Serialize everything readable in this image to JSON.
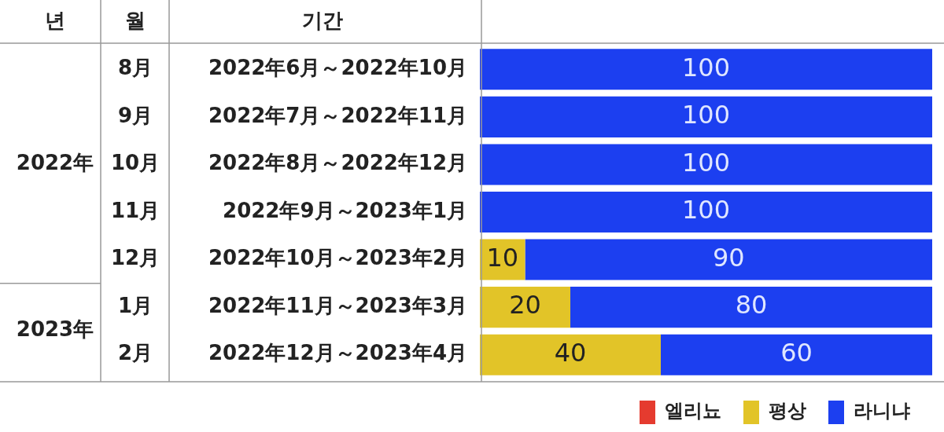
{
  "chart_data": {
    "type": "bar",
    "orientation": "horizontal",
    "stacked": true,
    "legend": "bottom",
    "tick_labels": "y",
    "xlim": [
      0,
      100
    ],
    "categories": [
      "2022年6月～2022年10月",
      "2022年7月～2022年11月",
      "2022年8月～2022年12月",
      "2022年9月～2023年1月",
      "2022年10月～2023年2月",
      "2022年11月～2023年3月",
      "2022年12月～2023年4月"
    ],
    "series": [
      {
        "name": "엘리뇨",
        "color": "#e53b2f",
        "values": [
          0,
          0,
          0,
          0,
          0,
          0,
          0
        ],
        "value_labels": [
          null,
          null,
          null,
          null,
          null,
          null,
          null
        ]
      },
      {
        "name": "평상",
        "color": "#e2c428",
        "values": [
          0,
          0,
          0,
          0,
          10,
          20,
          40
        ],
        "value_labels": [
          null,
          null,
          null,
          null,
          "10",
          "20",
          "40"
        ]
      },
      {
        "name": "라니냐",
        "color": "#1c3ff0",
        "values": [
          100,
          100,
          100,
          100,
          90,
          80,
          60
        ],
        "value_labels": [
          "100",
          "100",
          "100",
          "100",
          "90",
          "80",
          "60"
        ]
      }
    ],
    "annotations": [
      "년",
      "월",
      "기간",
      "8月",
      "9月",
      "10月",
      "11月",
      "12月",
      "1月",
      "2月",
      "2022年",
      "2023年"
    ]
  }
}
